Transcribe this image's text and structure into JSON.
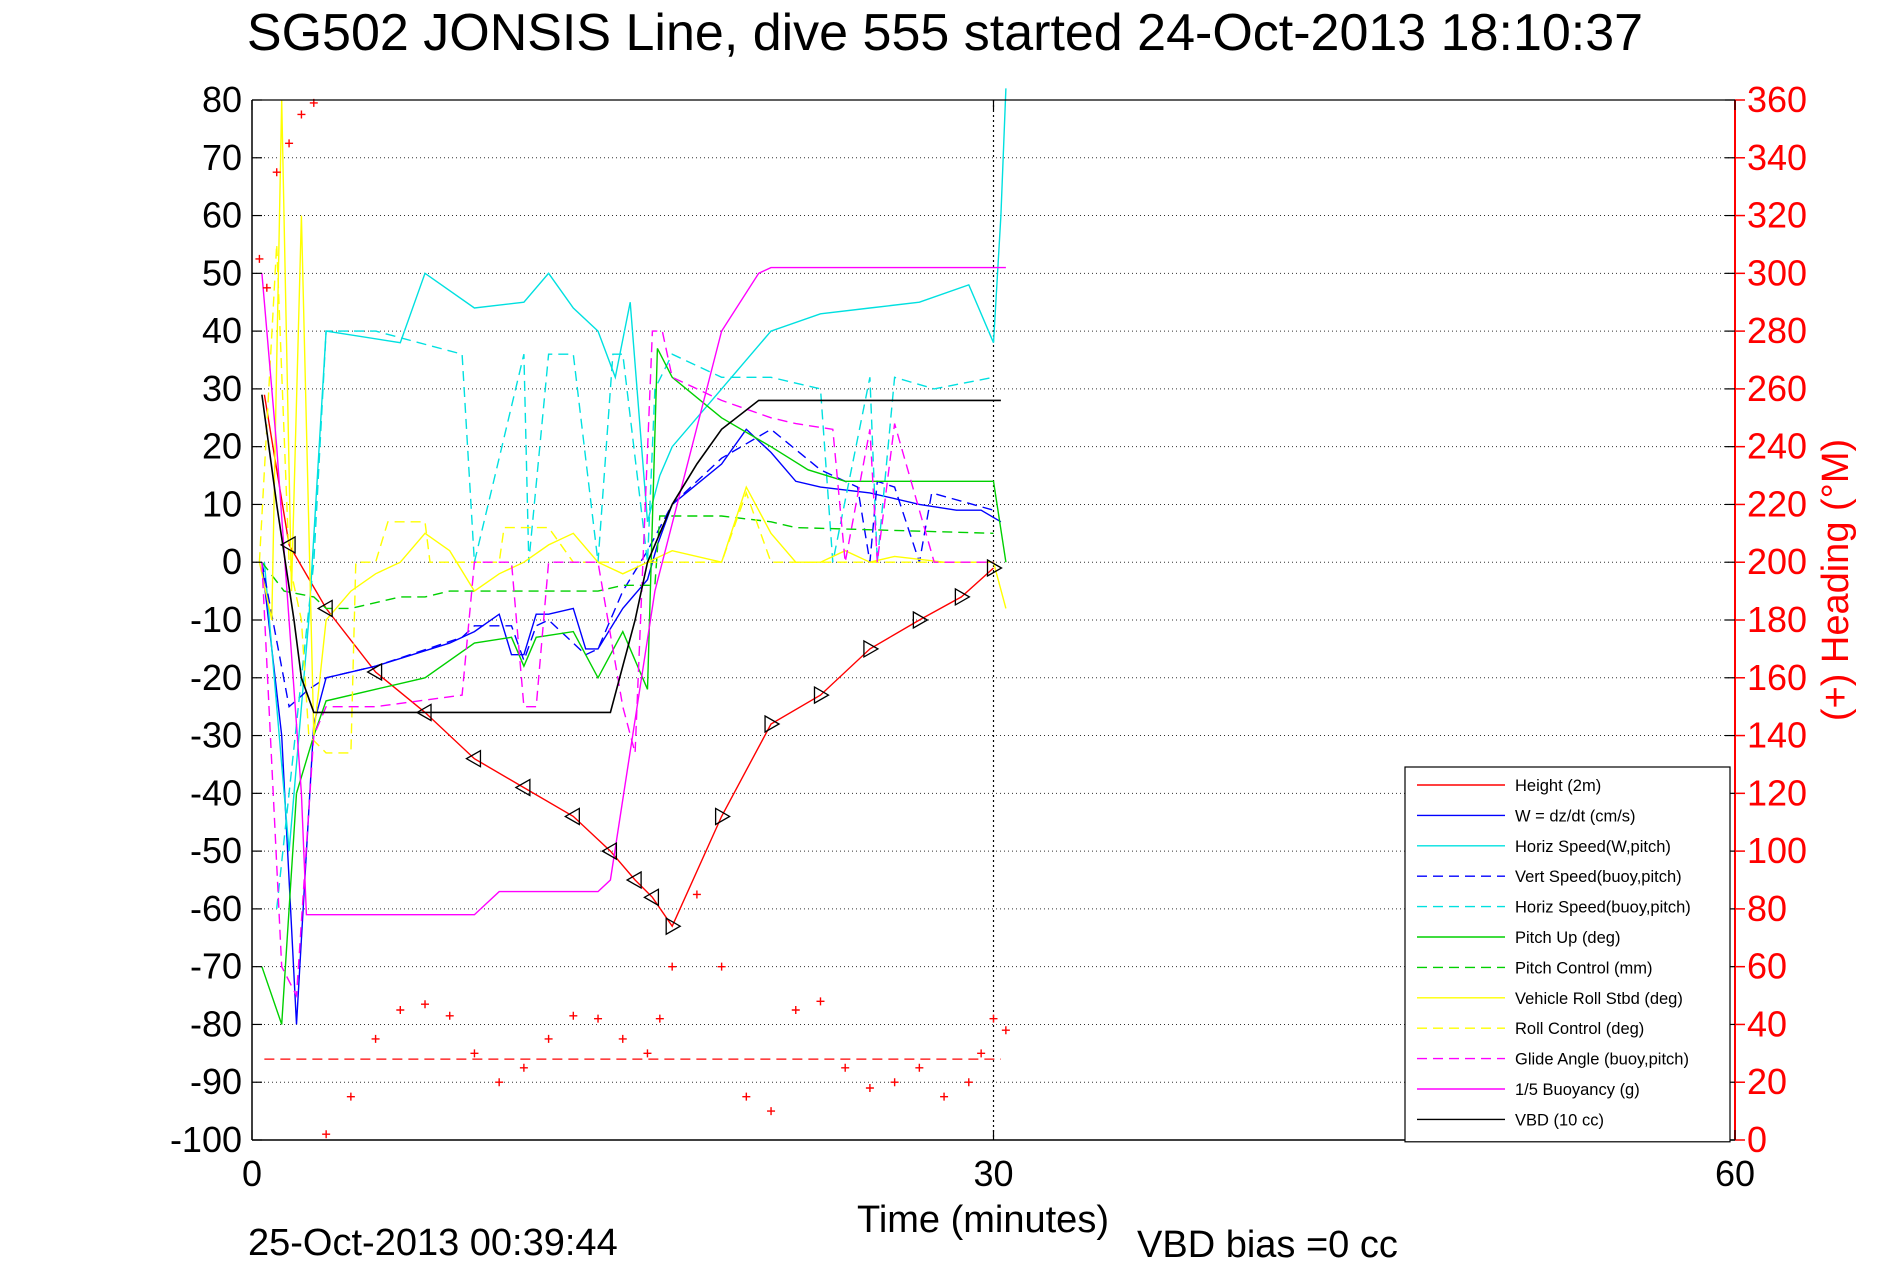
{
  "chart_data": {
    "type": "line",
    "title": "SG502 JONSIS Line, dive 555 started 24-Oct-2013 18:10:37",
    "xlabel": "Time (minutes)",
    "ylabel_right": "(+) Heading (°M)",
    "footer_date": "25-Oct-2013 00:39:44",
    "footer_vbd": "VBD bias =0 cc",
    "xlim": [
      0,
      60
    ],
    "ylim_left": [
      -100,
      80
    ],
    "ylim_right": [
      0,
      360
    ],
    "x_ticks": [
      0,
      30,
      60
    ],
    "y_ticks_left": [
      80,
      70,
      60,
      50,
      40,
      30,
      20,
      10,
      0,
      -10,
      -20,
      -30,
      -40,
      -50,
      -60,
      -70,
      -80,
      -90,
      -100
    ],
    "y_ticks_right": [
      360,
      340,
      320,
      300,
      280,
      260,
      240,
      220,
      200,
      180,
      160,
      140,
      120,
      100,
      80,
      60,
      40,
      20,
      0
    ],
    "grid": true,
    "legend_position": "lower-right",
    "colors": {
      "heading": "#ff0000",
      "axis_right": "#ff0000"
    },
    "series": [
      {
        "name": "Height (2m)",
        "color": "#ff0000",
        "style": "solid",
        "x": [
          0.5,
          1.5,
          3,
          5,
          7,
          9,
          11,
          13,
          14.5,
          15.5,
          16.2,
          17,
          19,
          21,
          23,
          25,
          27,
          28.7,
          30
        ],
        "y": [
          29,
          3,
          -8,
          -19,
          -26,
          -34,
          -39,
          -44,
          -50,
          -55,
          -58,
          -63,
          -44,
          -28,
          -23,
          -15,
          -10,
          -6,
          -1
        ]
      },
      {
        "name": "W = dz/dt (cm/s)",
        "color": "#0000ff",
        "style": "solid",
        "x": [
          0.4,
          1.2,
          1.8,
          2.5,
          3,
          5,
          8,
          9,
          10,
          10.5,
          11,
          11.5,
          12,
          13,
          13.5,
          14,
          15,
          16,
          16.4,
          17,
          19,
          20,
          21,
          22,
          23,
          25,
          27,
          28.5,
          29.5,
          30.3
        ],
        "y": [
          0,
          -30,
          -80,
          -28,
          -20,
          -18,
          -14,
          -12,
          -9,
          -16,
          -16,
          -9,
          -9,
          -8,
          -15,
          -15,
          -8,
          -3,
          3,
          10,
          17,
          23,
          19,
          14,
          13,
          12,
          10,
          9,
          9,
          7
        ]
      },
      {
        "name": "Horiz Speed(W,pitch)",
        "color": "#00e0e0",
        "style": "solid",
        "x": [
          0.5,
          1.5,
          2.3,
          3,
          6,
          7,
          9,
          11,
          12,
          13,
          14,
          14.7,
          15.3,
          16,
          16.5,
          17,
          19,
          21,
          23,
          25,
          27,
          29,
          30,
          30.3,
          30.5
        ],
        "y": [
          0,
          -50,
          -10,
          40,
          38,
          50,
          44,
          45,
          50,
          44,
          40,
          32,
          45,
          7,
          15,
          20,
          30,
          40,
          43,
          44,
          45,
          48,
          38,
          60,
          82
        ]
      },
      {
        "name": "Vert Speed(buoy,pitch)",
        "color": "#0000ff",
        "style": "dashed",
        "x": [
          0.4,
          1.5,
          2.3,
          3,
          5,
          8.5,
          9,
          10.5,
          11,
          11.5,
          12,
          13.5,
          14,
          15,
          16,
          17,
          19,
          21,
          23,
          24.5,
          25,
          25.3,
          26,
          27,
          27.5,
          30
        ],
        "y": [
          0,
          -25,
          -22,
          -20,
          -18,
          -13,
          -11,
          -11,
          -17,
          -11,
          -10,
          -16,
          -15,
          -5,
          2,
          10,
          18,
          23,
          16,
          13,
          0,
          14,
          13,
          0,
          12,
          9
        ]
      },
      {
        "name": "Horiz Speed(buoy,pitch)",
        "color": "#00e0e0",
        "style": "dashed",
        "x": [
          1,
          2.5,
          3,
          5,
          8.5,
          9,
          11,
          11.2,
          12,
          13,
          14,
          14.6,
          15,
          16,
          16.3,
          17,
          19,
          21,
          23,
          23.5,
          25,
          25.3,
          26,
          27.6,
          30
        ],
        "y": [
          -60,
          0,
          40,
          40,
          36,
          0,
          36,
          0,
          36,
          36,
          0,
          36,
          36,
          0,
          30,
          36,
          32,
          32,
          30,
          0,
          32,
          0,
          32,
          30,
          32
        ]
      },
      {
        "name": "Pitch Up (deg)",
        "color": "#00d000",
        "style": "solid",
        "x": [
          0.4,
          1.2,
          1.8,
          2.5,
          3,
          5,
          7,
          9,
          10.5,
          11,
          11.5,
          13,
          14,
          15,
          16,
          16.4,
          17,
          19,
          21,
          22.5,
          24,
          27,
          30,
          30.5
        ],
        "y": [
          -70,
          -80,
          -40,
          -30,
          -24,
          -22,
          -20,
          -14,
          -13,
          -18,
          -13,
          -12,
          -20,
          -12,
          -22,
          37,
          32,
          25,
          20,
          16,
          14,
          14,
          14,
          0
        ]
      },
      {
        "name": "Pitch Control (mm)",
        "color": "#00d000",
        "style": "dashed",
        "x": [
          0.4,
          1.3,
          2.5,
          3,
          4,
          6,
          7,
          8,
          12,
          14,
          15,
          16.3,
          16.5,
          19,
          21,
          22,
          30
        ],
        "y": [
          0,
          -5,
          -6,
          -8,
          -8,
          -6,
          -6,
          -5,
          -5,
          -5,
          -4,
          -4,
          8,
          8,
          7,
          6,
          5
        ]
      },
      {
        "name": "Vehicle Roll Stbd (deg)",
        "color": "#ffff00",
        "style": "solid",
        "x": [
          0.3,
          0.8,
          1.2,
          1.6,
          2,
          2.5,
          3,
          4,
          5,
          6,
          7,
          8,
          9,
          10,
          11,
          12,
          13,
          14,
          15,
          16,
          17,
          19,
          20,
          21,
          22,
          23,
          24,
          25,
          26,
          28,
          30,
          30.5
        ],
        "y": [
          0,
          -10,
          80,
          -5,
          60,
          -30,
          -10,
          -5,
          -2,
          0,
          5,
          2,
          -5,
          -2,
          0,
          3,
          5,
          0,
          -2,
          0,
          2,
          0,
          13,
          5,
          0,
          0,
          2,
          0,
          1,
          0,
          0,
          -8
        ]
      },
      {
        "name": "Roll Control (deg)",
        "color": "#ffff00",
        "style": "dashed",
        "x": [
          0.3,
          1,
          1.5,
          2,
          2.3,
          3,
          4,
          4.2,
          5,
          5.5,
          7,
          7.2,
          9,
          10,
          10.2,
          12,
          13,
          14,
          16,
          19,
          20,
          21,
          22,
          23,
          30
        ],
        "y": [
          0,
          55,
          0,
          -10,
          -30,
          -33,
          -33,
          0,
          0,
          7,
          7,
          0,
          0,
          0,
          6,
          6,
          0,
          0,
          0,
          0,
          12,
          0,
          0,
          0,
          0
        ]
      },
      {
        "name": "Glide Angle (buoy,pitch)",
        "color": "#ff00ff",
        "style": "dashed",
        "x": [
          0.4,
          1.2,
          1.8,
          2.5,
          3,
          5,
          8.5,
          9,
          10.5,
          11,
          11.5,
          12,
          13.5,
          14,
          15,
          15.5,
          16.2,
          16.6,
          17,
          19,
          21,
          22,
          23.5,
          24,
          25,
          25.3,
          26,
          27.6,
          30
        ],
        "y": [
          0,
          -70,
          -75,
          -30,
          -25,
          -25,
          -23,
          0,
          0,
          -25,
          -25,
          0,
          0,
          0,
          -25,
          -33,
          40,
          40,
          32,
          28,
          25,
          24,
          23,
          0,
          23,
          0,
          24,
          0,
          0
        ]
      },
      {
        "name": "1/5 Buoyancy (g)",
        "color": "#ff00ff",
        "style": "solid",
        "x": [
          0.4,
          1,
          2,
          2.2,
          5,
          7,
          9,
          10,
          12,
          13,
          14,
          14.5,
          16.3,
          19,
          20.5,
          21,
          25,
          30,
          30.5
        ],
        "y": [
          50,
          20,
          -40,
          -61,
          -61,
          -61,
          -61,
          -57,
          -57,
          -57,
          -57,
          -55,
          -5,
          40,
          50,
          51,
          51,
          51,
          51
        ]
      },
      {
        "name": "VBD (10 cc)",
        "color": "#000000",
        "style": "solid",
        "x": [
          0.4,
          1,
          1.7,
          2,
          2.5,
          3,
          5,
          8,
          12,
          14.5,
          15.5,
          16,
          17,
          18,
          19,
          20.5,
          21,
          22,
          25,
          30.3
        ],
        "y": [
          29,
          10,
          -10,
          -20,
          -26,
          -26,
          -26,
          -26,
          -26,
          -26,
          -10,
          0,
          10,
          17,
          23,
          28,
          28,
          28,
          28,
          28
        ]
      },
      {
        "name": "",
        "role": "heading",
        "axis": "right",
        "color": "#ff0000",
        "style": "markers",
        "x": [
          0.3,
          0.6,
          1,
          1.5,
          2,
          2.5,
          3,
          4,
          5,
          6,
          7,
          8,
          9,
          10,
          11,
          12,
          13,
          14,
          15,
          16,
          16.5,
          17,
          18,
          19,
          20,
          21,
          22,
          23,
          24,
          25,
          26,
          27,
          28,
          29,
          29.5,
          30,
          30.5
        ],
        "y": [
          305,
          295,
          335,
          345,
          355,
          359,
          2,
          15,
          35,
          45,
          47,
          43,
          30,
          20,
          25,
          35,
          43,
          42,
          35,
          30,
          42,
          60,
          85,
          60,
          15,
          10,
          45,
          48,
          25,
          18,
          20,
          25,
          15,
          20,
          30,
          42,
          38
        ]
      }
    ],
    "reference_lines": [
      {
        "axis": "left",
        "y": -86,
        "color": "#ff0000",
        "style": "dashed",
        "x": [
          0.5,
          30.3
        ]
      },
      {
        "axis": "x",
        "x": 30,
        "color": "#000000",
        "style": "dotted"
      }
    ]
  }
}
